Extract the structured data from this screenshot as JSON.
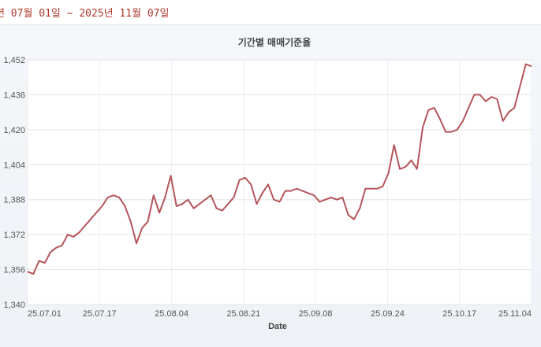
{
  "header": {
    "date_range_text": "년 07월 01일 ~ 2025년 11월 07일"
  },
  "chart_data": {
    "type": "line",
    "title": "기간별 매매기준율",
    "xlabel": "Date",
    "ylabel": "",
    "ylim": [
      1340,
      1452
    ],
    "yticks": [
      "1,340",
      "1,356",
      "1,372",
      "1,388",
      "1,404",
      "1,420",
      "1,436",
      "1,452"
    ],
    "xtick_labels": [
      "25.07.01",
      "25.07.17",
      "25.08.04",
      "25.08.21",
      "25.09.08",
      "25.09.24",
      "25.10.17",
      "25.11.04"
    ],
    "grid": true,
    "line_color": "#b5555b",
    "series": [
      {
        "name": "",
        "values": [
          1355,
          1354,
          1360,
          1359,
          1364,
          1366,
          1367,
          1372,
          1371,
          1373,
          1376,
          1379,
          1382,
          1385,
          1389,
          1390,
          1389,
          1385,
          1378,
          1368,
          1375,
          1378,
          1390,
          1382,
          1389,
          1399,
          1385,
          1386,
          1388,
          1384,
          1386,
          1388,
          1390,
          1384,
          1383,
          1386,
          1389,
          1397,
          1398,
          1395,
          1386,
          1391,
          1395,
          1388,
          1387,
          1392,
          1392,
          1393,
          1392,
          1391,
          1390,
          1387,
          1388,
          1389,
          1388,
          1389,
          1381,
          1379,
          1384,
          1393,
          1393,
          1393,
          1394,
          1400,
          1413,
          1402,
          1403,
          1406,
          1402,
          1421,
          1429,
          1430,
          1425,
          1419,
          1419,
          1420,
          1424,
          1430,
          1436,
          1436,
          1433,
          1435,
          1434,
          1424,
          1428,
          1430,
          1440,
          1450,
          1449
        ]
      }
    ]
  }
}
